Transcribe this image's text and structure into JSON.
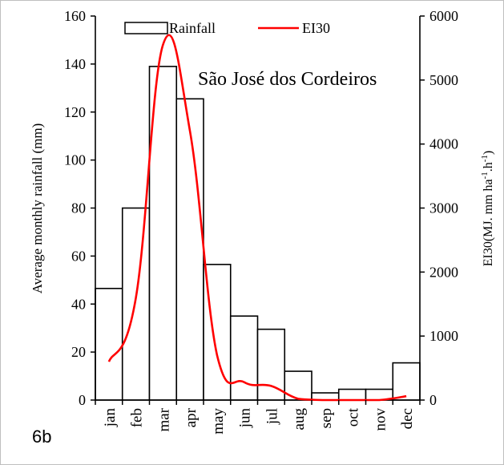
{
  "panel_label": "6b",
  "chart_data": {
    "type": "bar",
    "annotation": "São José dos Cordeiros",
    "categories": [
      "jan",
      "feb",
      "mar",
      "apr",
      "may",
      "jun",
      "jul",
      "aug",
      "sep",
      "oct",
      "nov",
      "dec"
    ],
    "series": [
      {
        "name": "Rainfall",
        "type": "bar",
        "axis": "left",
        "values": [
          46.5,
          80,
          139,
          125.5,
          56.5,
          35,
          29.5,
          12,
          3,
          4.5,
          4.5,
          15.5
        ],
        "fill": "#ffffff",
        "stroke": "#000000"
      },
      {
        "name": "EI30",
        "type": "line",
        "axis": "right",
        "color": "#ff0000",
        "points": [
          {
            "x": "jan",
            "y": 600
          },
          {
            "x": "feb",
            "y": 1600
          },
          {
            "x": "mar",
            "y": 5550
          },
          {
            "x": "apr",
            "y": 4200
          },
          {
            "x": "may",
            "y": 700
          },
          {
            "x": "jun",
            "y": 280
          },
          {
            "x": "jul",
            "y": 220
          },
          {
            "x": "aug",
            "y": 20
          },
          {
            "x": "sep",
            "y": 0
          },
          {
            "x": "oct",
            "y": 0
          },
          {
            "x": "nov",
            "y": 0
          },
          {
            "x": "dec",
            "y": 60
          }
        ]
      }
    ],
    "y_left": {
      "label": "Average monthly rainfall (mm)",
      "min": 0,
      "max": 160,
      "ticks": [
        0,
        20,
        40,
        60,
        80,
        100,
        120,
        140,
        160
      ]
    },
    "y_right": {
      "label_base": "EI30(MJ. mm ha",
      "label_sup1": "-1",
      "label_mid": ".h",
      "label_sup2": "-1",
      "label_end": ")",
      "min": 0,
      "max": 6000,
      "ticks": [
        0,
        1000,
        2000,
        3000,
        4000,
        5000,
        6000
      ]
    },
    "legend": {
      "position": "top-center",
      "items": [
        "Rainfall",
        "EI30"
      ]
    },
    "grid": false
  }
}
